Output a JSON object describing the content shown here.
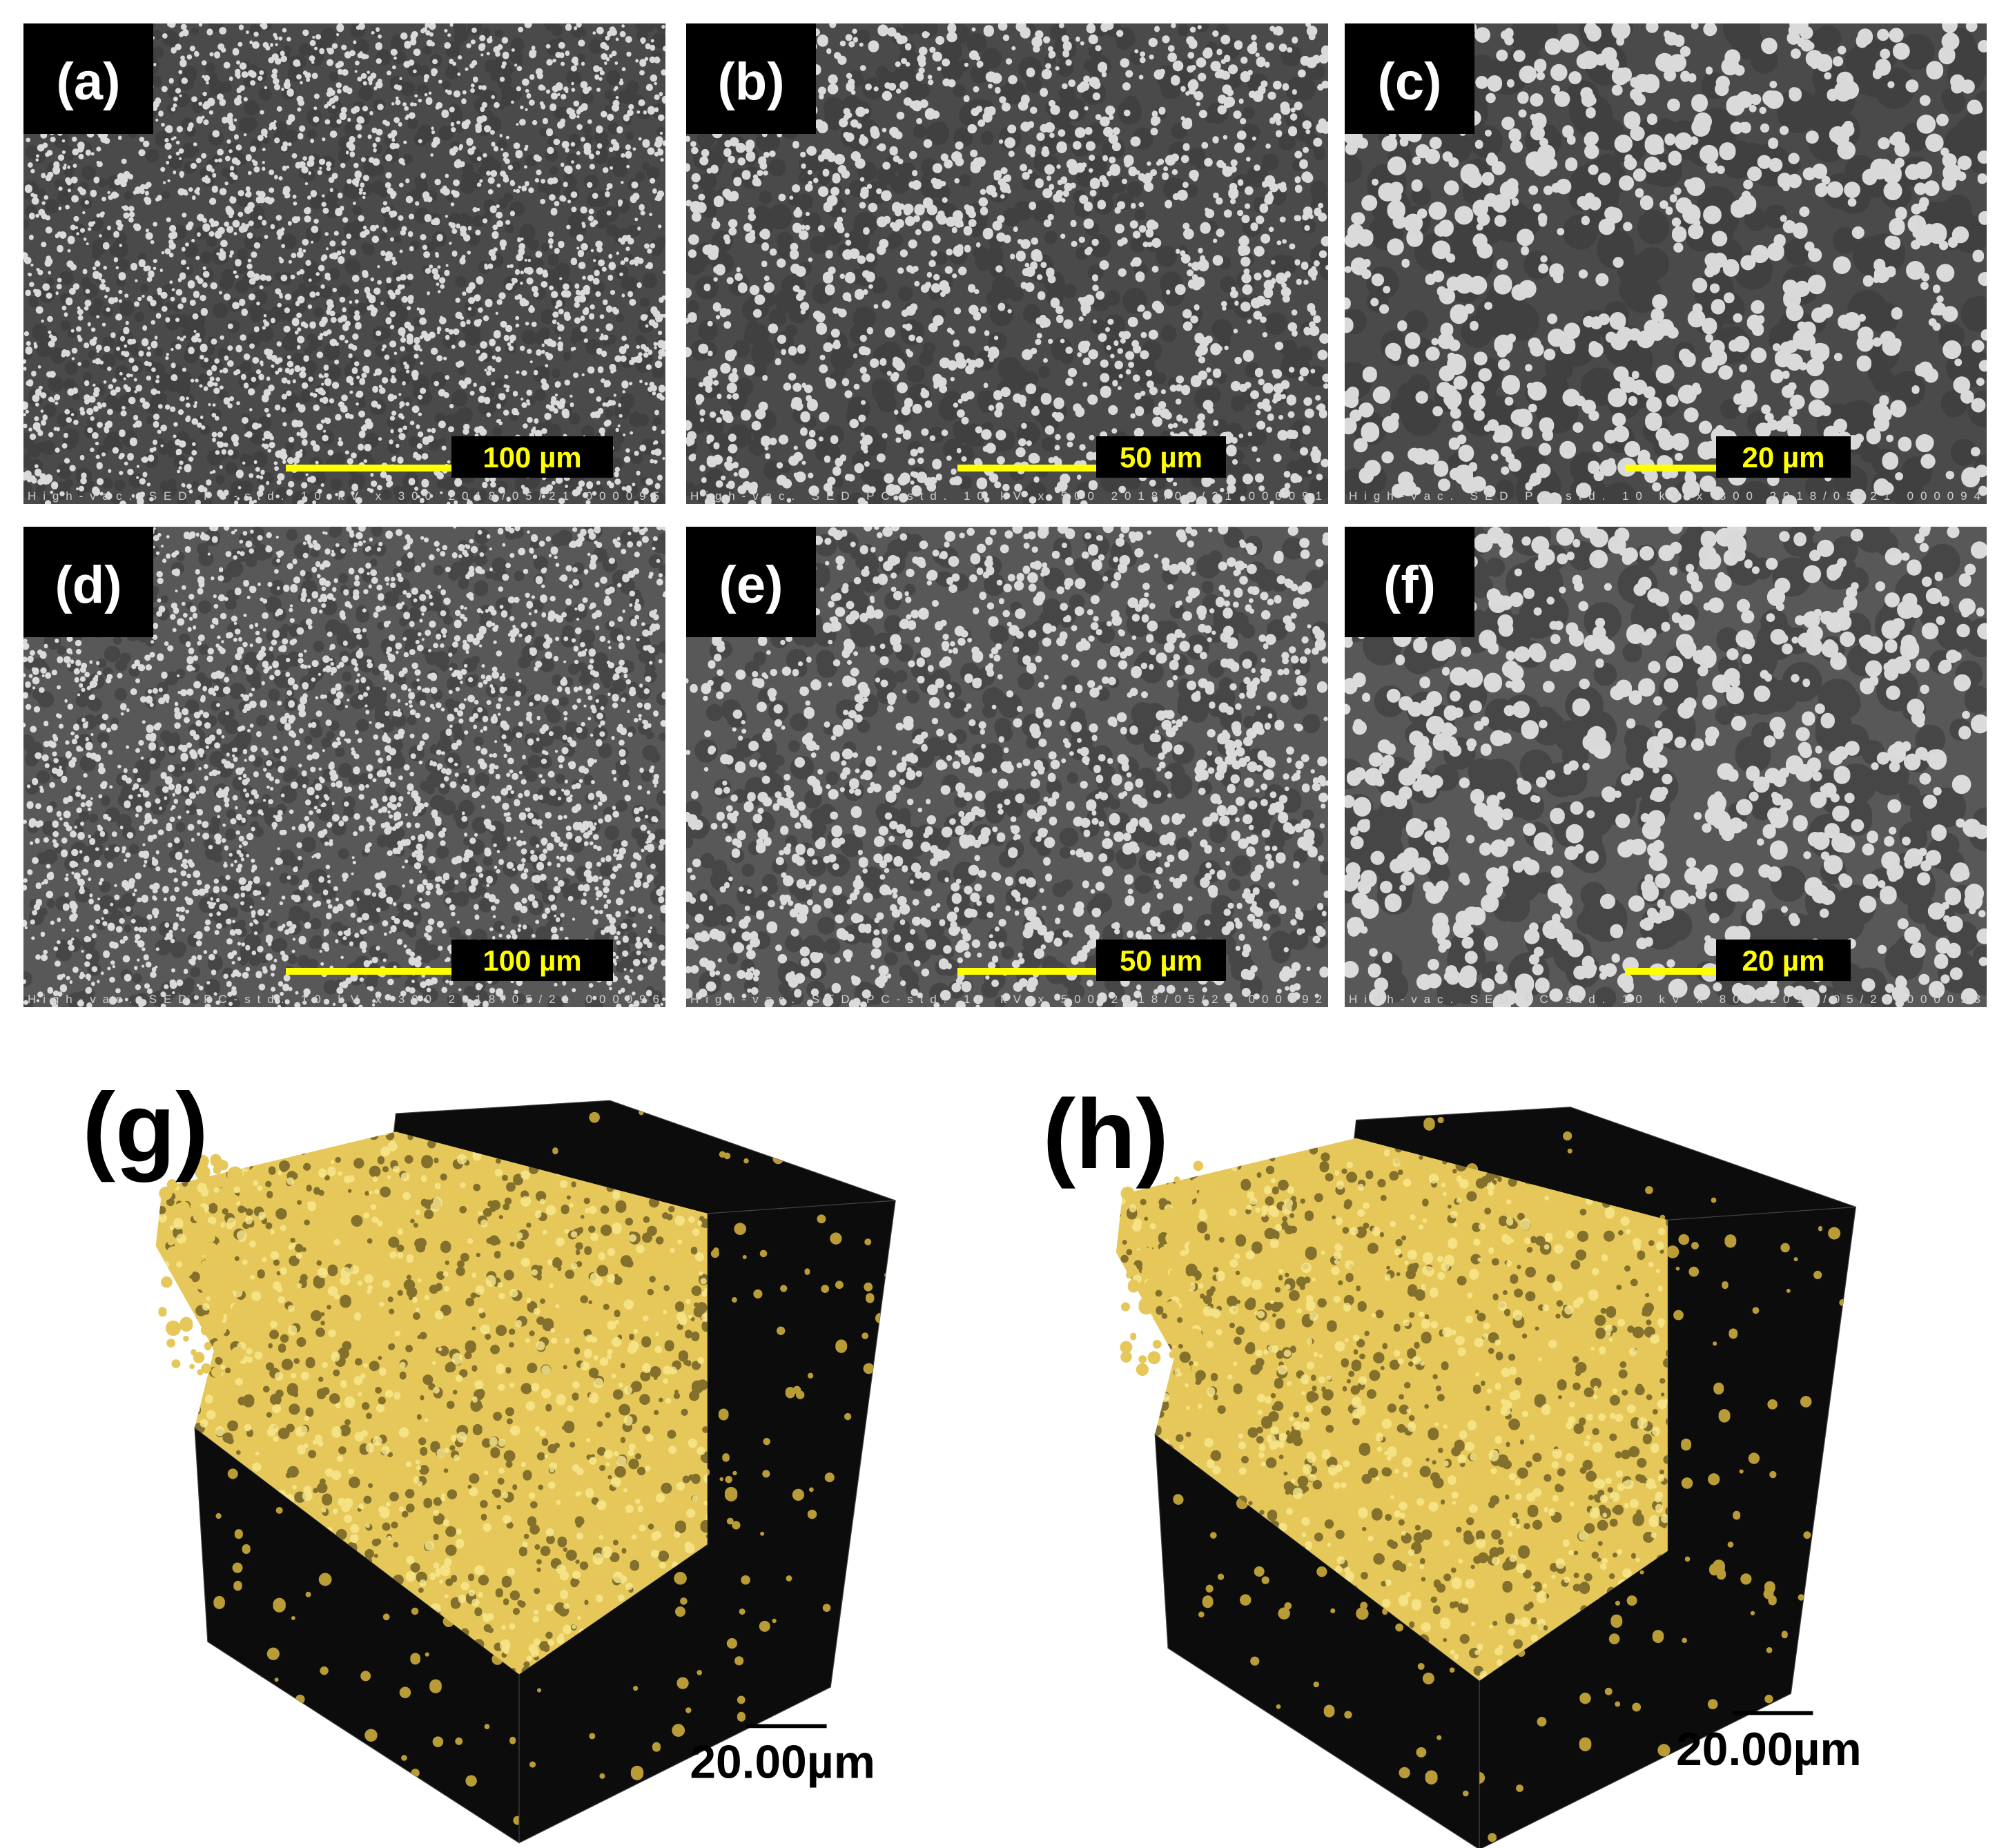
{
  "panels": [
    {
      "label": "(a)",
      "scale_bar": "100 µm",
      "info": "High-vac. SED PC-std. 10 kV x 300 2018/05/21 000095"
    },
    {
      "label": "(b)",
      "scale_bar": "50 µm",
      "info": "High-vac. SED PC-std. 10 kV x 500 2018/05/21 000091"
    },
    {
      "label": "(c)",
      "scale_bar": "20 µm",
      "info": "High-vac. SED PC-std. 10 kV x 800 2018/05/21 000094"
    },
    {
      "label": "(d)",
      "scale_bar": "100 µm",
      "info": "High-vac. SED PC-std. 10 kV x 300 2018/05/21 000096"
    },
    {
      "label": "(e)",
      "scale_bar": "50 µm",
      "info": "High-vac. SED PC-std. 10 kV x 500 2018/05/21 000092"
    },
    {
      "label": "(f)",
      "scale_bar": "20 µm",
      "info": "High-vac. SED PC-std. 10 kV x 800 2018/05/21 000093"
    }
  ],
  "renders": [
    {
      "label": "(g)",
      "scale_bar": "20.00µm"
    },
    {
      "label": "(h)",
      "scale_bar": "20.00µm"
    }
  ]
}
